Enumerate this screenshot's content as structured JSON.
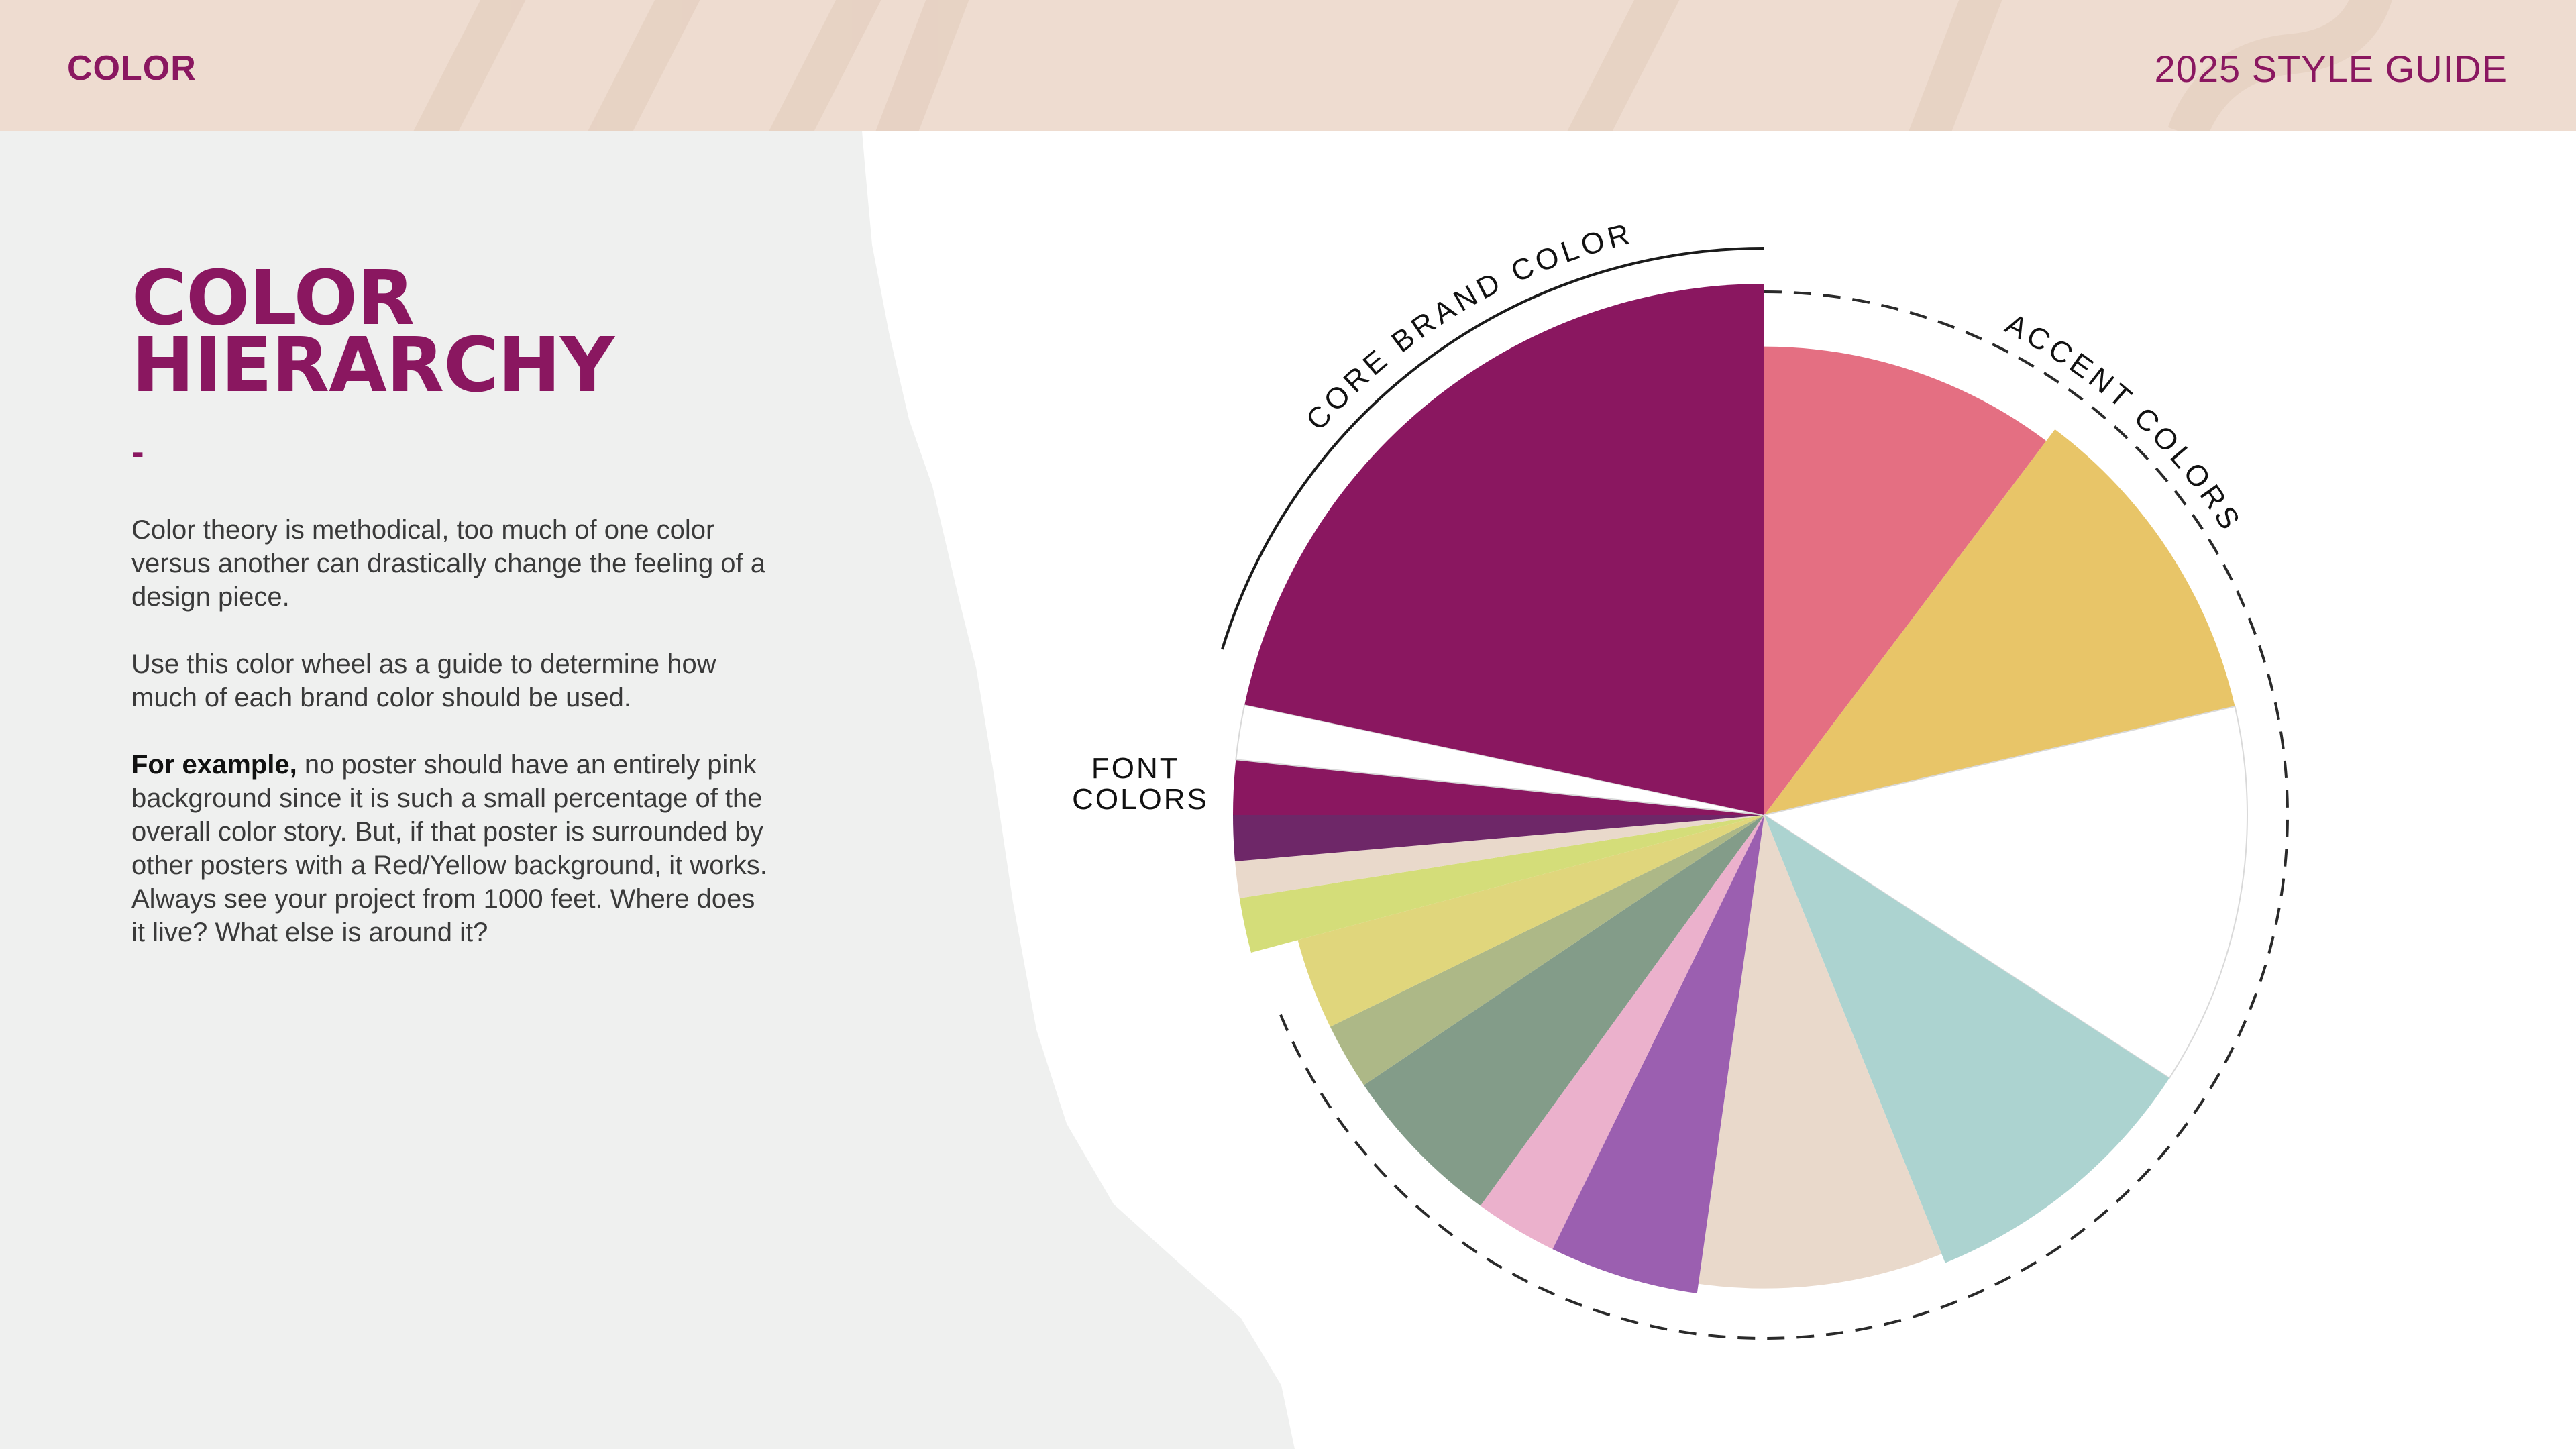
{
  "header": {
    "section": "COLOR",
    "guide": "2025 STYLE GUIDE"
  },
  "main": {
    "title_line1": "COLOR",
    "title_line2": "HIERARCHY",
    "dash": "-",
    "paragraph1": "Color theory is methodical,  too much of one color versus another can drastically change the feeling of a design piece.",
    "paragraph2": "Use this color wheel as a guide to determine how much of each brand color should be used.",
    "paragraph3_bold": "For example,",
    "paragraph3_rest": " no poster should have an entirely pink background since it is such a small percentage of the overall color story.  But, if that poster is surrounded by other posters with a Red/Yellow background, it works.  Always see your project from 1000 feet.  Where does it live? What else is around it?"
  },
  "colors": {
    "brand": "#8a1760",
    "header_bg": "#eedcd0",
    "panel_bg": "#eff0ef"
  },
  "chart_data": {
    "type": "pie",
    "arc_labels": {
      "core": "CORE BRAND COLOR",
      "accent": "ACCENT COLORS",
      "font_line1": "FONT",
      "font_line2": "COLORS"
    },
    "slices": [
      {
        "group": "accent",
        "color": "#e46f82",
        "start": 0,
        "end": 37,
        "radius": 0.97
      },
      {
        "group": "accent",
        "color": "#e8c568",
        "start": 37,
        "end": 77,
        "radius": 1.0
      },
      {
        "group": "accent",
        "color": "#ffffff",
        "start": 77,
        "end": 123,
        "radius": 1.0
      },
      {
        "group": "accent",
        "color": "#acd3d0",
        "start": 123,
        "end": 158,
        "radius": 1.0
      },
      {
        "group": "accent",
        "color": "#e9d9cb",
        "start": 158,
        "end": 188,
        "radius": 0.98
      },
      {
        "group": "accent",
        "color": "#9b5fb0",
        "start": 188,
        "end": 206,
        "radius": 1.0
      },
      {
        "group": "accent",
        "color": "#ebb1cc",
        "start": 206,
        "end": 216,
        "radius": 1.0
      },
      {
        "group": "accent",
        "color": "#839c89",
        "start": 216,
        "end": 236,
        "radius": 1.0
      },
      {
        "group": "accent",
        "color": "#adb887",
        "start": 236,
        "end": 244,
        "radius": 1.0
      },
      {
        "group": "accent",
        "color": "#e0d67c",
        "start": 244,
        "end": 255,
        "radius": 1.0
      },
      {
        "group": "font",
        "color": "#d4dd79",
        "start": 255,
        "end": 261,
        "radius": 1.1
      },
      {
        "group": "font",
        "color": "#e9d9cb",
        "start": 261,
        "end": 265,
        "radius": 1.1
      },
      {
        "group": "font",
        "color": "#6e2768",
        "start": 265,
        "end": 270,
        "radius": 1.1
      },
      {
        "group": "font",
        "color": "#8a1760",
        "start": 270,
        "end": 276,
        "radius": 1.1
      },
      {
        "group": "font",
        "color": "#ffffff",
        "start": 276,
        "end": 282,
        "radius": 1.1
      },
      {
        "group": "core",
        "color": "#8a1760",
        "start": 282,
        "end": 360,
        "radius": 1.1
      }
    ]
  }
}
